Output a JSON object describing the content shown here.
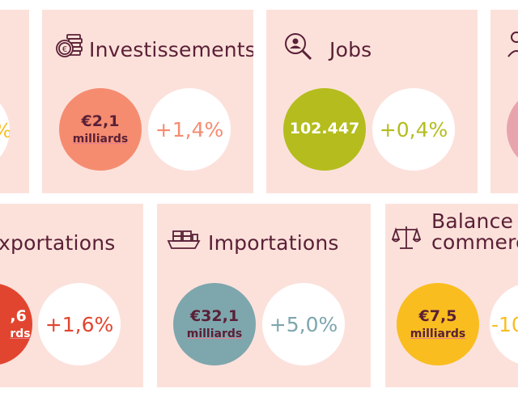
{
  "colors": {
    "card_bg": "#fce1db",
    "title": "#5a2036",
    "white_circle": "#ffffff",
    "salmon": "#f58c70",
    "olive": "#b4bd1d",
    "teal": "#7ea6ad",
    "red": "#e2452f",
    "yellow": "#f9bd1f",
    "pink": "#e8a4ad"
  },
  "cards": {
    "investissements": {
      "title": "Investissements",
      "icon": "coins-euro-icon",
      "value": "€2,1",
      "unit": "milliards",
      "change": "+1,4%"
    },
    "jobs": {
      "title": "Jobs",
      "icon": "person-search-icon",
      "value": "102.447",
      "change": "+0,4%"
    },
    "exportations": {
      "title": "xportations",
      "icon": "",
      "value": ",6",
      "unit": "rds",
      "change": "+1,6%"
    },
    "importations": {
      "title": "Importations",
      "icon": "cargo-ship-icon",
      "value": "€32,1",
      "unit": "milliards",
      "change": "+5,0%"
    },
    "balance": {
      "title_line1": "Balance",
      "title_line2": "commerc",
      "icon": "scales-icon",
      "value": "€7,5",
      "unit": "milliards",
      "change": "-10"
    },
    "partial_left": {
      "change": "%"
    }
  }
}
